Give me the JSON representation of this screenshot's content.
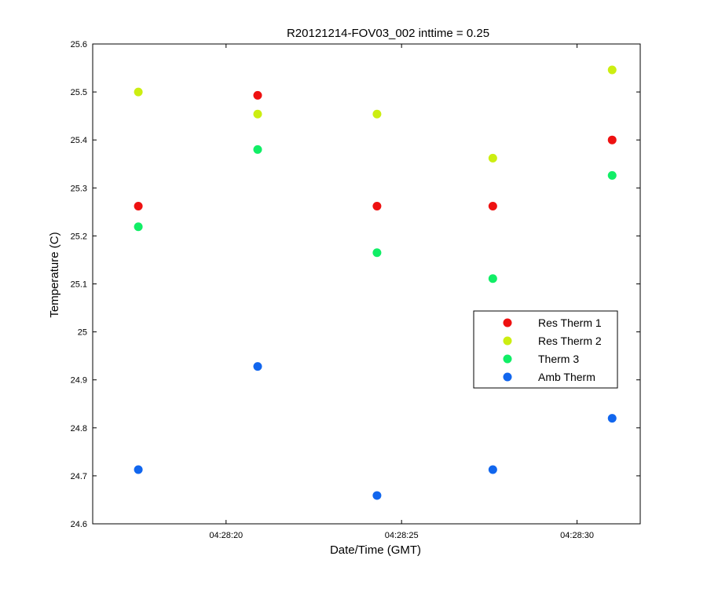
{
  "chart_data": {
    "type": "scatter",
    "title": "R20121214-FOV03_002 inttime = 0.25",
    "xlabel": "Date/Time (GMT)",
    "ylabel": "Temperature (C)",
    "xlim": [
      "04:28:16.2",
      "04:28:31.8"
    ],
    "ylim": [
      24.6,
      25.6
    ],
    "x_ticks": [
      "04:28:20",
      "04:28:25",
      "04:28:30"
    ],
    "y_ticks": [
      "24.6",
      "24.7",
      "24.8",
      "24.9",
      "25",
      "25.1",
      "25.2",
      "25.3",
      "25.4",
      "25.5",
      "25.6"
    ],
    "grid": false,
    "legend_position": "right",
    "x": [
      "04:28:17.5",
      "04:28:20.9",
      "04:28:24.3",
      "04:28:27.6",
      "04:28:31.0"
    ],
    "series": [
      {
        "name": "Res Therm 1",
        "color": "#ee1111",
        "values": [
          25.262,
          25.493,
          25.262,
          25.262,
          25.4
        ]
      },
      {
        "name": "Res Therm 2",
        "color": "#ccee11",
        "values": [
          25.5,
          25.454,
          25.454,
          25.362,
          25.546
        ]
      },
      {
        "name": "Therm 3",
        "color": "#11ee66",
        "values": [
          25.219,
          25.38,
          25.165,
          25.111,
          25.326
        ]
      },
      {
        "name": "Amb Therm",
        "color": "#1166ee",
        "values": [
          24.713,
          24.928,
          24.659,
          24.713,
          24.82
        ]
      }
    ]
  }
}
